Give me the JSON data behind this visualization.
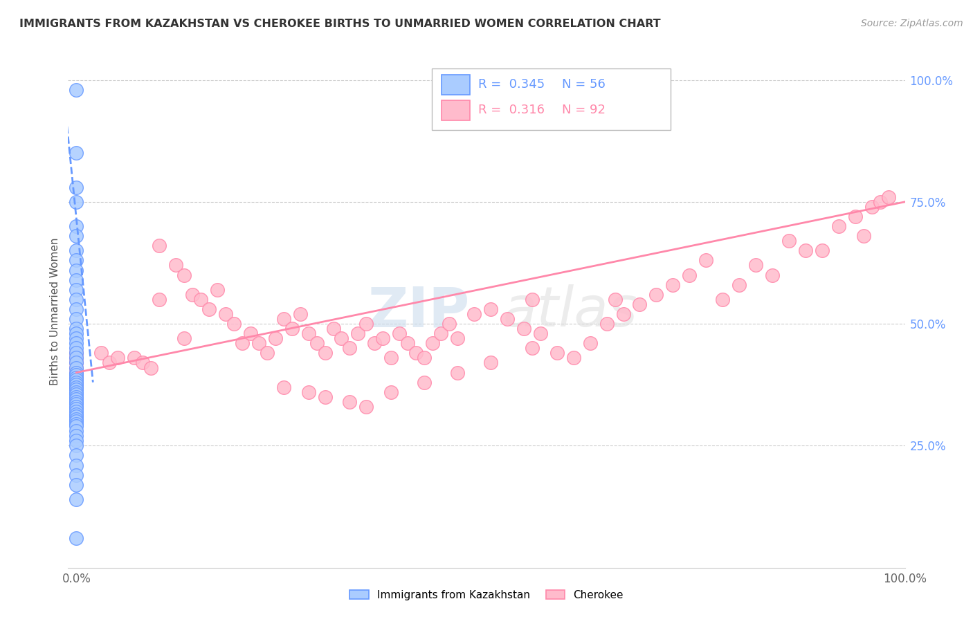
{
  "title": "IMMIGRANTS FROM KAZAKHSTAN VS CHEROKEE BIRTHS TO UNMARRIED WOMEN CORRELATION CHART",
  "source": "Source: ZipAtlas.com",
  "ylabel": "Births to Unmarried Women",
  "legend_r1": "0.345",
  "legend_n1": "56",
  "legend_r2": "0.316",
  "legend_n2": "92",
  "legend_label1": "Immigrants from Kazakhstan",
  "legend_label2": "Cherokee",
  "watermark": "ZIPatlas",
  "blue_color": "#6699FF",
  "blue_color_light": "#AACCFF",
  "pink_color": "#FF88AA",
  "pink_color_light": "#FFBBCC",
  "blue_scatter_x": [
    0.0,
    0.0,
    0.0,
    0.0,
    0.0,
    0.0,
    0.0,
    0.0,
    0.0,
    0.0,
    0.0,
    0.0,
    0.0,
    0.0,
    0.0,
    0.0,
    0.0,
    0.0,
    0.0,
    0.0,
    0.0,
    0.0,
    0.0,
    0.0,
    0.0,
    0.0,
    0.0,
    0.0,
    0.0,
    0.0,
    0.0,
    0.0,
    0.0,
    0.0,
    0.0,
    0.0,
    0.0,
    0.0,
    0.0,
    0.0,
    0.0,
    0.0,
    0.0,
    0.0,
    0.0,
    0.0,
    0.0,
    0.0,
    0.0,
    0.0,
    0.0,
    0.0,
    0.0,
    0.0,
    0.0,
    0.0
  ],
  "blue_scatter_y": [
    0.98,
    0.85,
    0.78,
    0.75,
    0.7,
    0.68,
    0.65,
    0.63,
    0.61,
    0.59,
    0.57,
    0.55,
    0.53,
    0.51,
    0.49,
    0.48,
    0.47,
    0.46,
    0.45,
    0.44,
    0.43,
    0.42,
    0.41,
    0.4,
    0.395,
    0.39,
    0.385,
    0.38,
    0.375,
    0.37,
    0.365,
    0.36,
    0.355,
    0.35,
    0.345,
    0.34,
    0.335,
    0.33,
    0.325,
    0.32,
    0.315,
    0.31,
    0.305,
    0.3,
    0.295,
    0.29,
    0.28,
    0.27,
    0.26,
    0.25,
    0.23,
    0.21,
    0.19,
    0.17,
    0.14,
    0.06
  ],
  "pink_scatter_x": [
    0.0,
    0.0,
    0.0,
    0.0,
    0.0,
    0.0,
    0.0,
    0.0,
    0.03,
    0.04,
    0.05,
    0.07,
    0.08,
    0.09,
    0.1,
    0.1,
    0.12,
    0.13,
    0.13,
    0.14,
    0.15,
    0.16,
    0.17,
    0.18,
    0.19,
    0.2,
    0.21,
    0.22,
    0.23,
    0.24,
    0.25,
    0.26,
    0.27,
    0.28,
    0.29,
    0.3,
    0.31,
    0.32,
    0.33,
    0.34,
    0.35,
    0.36,
    0.37,
    0.38,
    0.39,
    0.4,
    0.41,
    0.42,
    0.43,
    0.44,
    0.45,
    0.46,
    0.48,
    0.5,
    0.52,
    0.54,
    0.55,
    0.56,
    0.58,
    0.6,
    0.62,
    0.64,
    0.65,
    0.66,
    0.68,
    0.7,
    0.72,
    0.74,
    0.76,
    0.78,
    0.8,
    0.82,
    0.84,
    0.86,
    0.88,
    0.9,
    0.92,
    0.94,
    0.95,
    0.96,
    0.97,
    0.98,
    0.25,
    0.28,
    0.3,
    0.33,
    0.35,
    0.38,
    0.42,
    0.46,
    0.5,
    0.55
  ],
  "pink_scatter_y": [
    0.44,
    0.43,
    0.42,
    0.41,
    0.4,
    0.39,
    0.38,
    0.37,
    0.44,
    0.42,
    0.43,
    0.43,
    0.42,
    0.41,
    0.66,
    0.55,
    0.62,
    0.6,
    0.47,
    0.56,
    0.55,
    0.53,
    0.57,
    0.52,
    0.5,
    0.46,
    0.48,
    0.46,
    0.44,
    0.47,
    0.51,
    0.49,
    0.52,
    0.48,
    0.46,
    0.44,
    0.49,
    0.47,
    0.45,
    0.48,
    0.5,
    0.46,
    0.47,
    0.43,
    0.48,
    0.46,
    0.44,
    0.43,
    0.46,
    0.48,
    0.5,
    0.47,
    0.52,
    0.53,
    0.51,
    0.49,
    0.55,
    0.48,
    0.44,
    0.43,
    0.46,
    0.5,
    0.55,
    0.52,
    0.54,
    0.56,
    0.58,
    0.6,
    0.63,
    0.55,
    0.58,
    0.62,
    0.6,
    0.67,
    0.65,
    0.65,
    0.7,
    0.72,
    0.68,
    0.74,
    0.75,
    0.76,
    0.37,
    0.36,
    0.35,
    0.34,
    0.33,
    0.36,
    0.38,
    0.4,
    0.42,
    0.45
  ],
  "blue_line_x": [
    -0.02,
    0.02
  ],
  "blue_line_y": [
    1.05,
    0.38
  ],
  "pink_line_x": [
    0.0,
    1.0
  ],
  "pink_line_y": [
    0.4,
    0.75
  ],
  "xlim": [
    -0.01,
    1.0
  ],
  "ylim": [
    0.0,
    1.05
  ]
}
